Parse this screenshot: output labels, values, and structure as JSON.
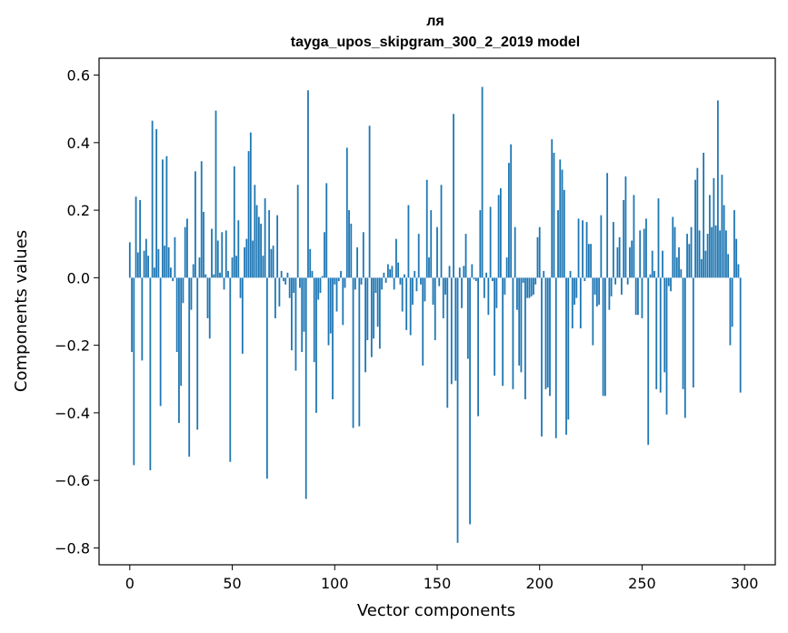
{
  "chart_data": {
    "type": "bar",
    "title": "ля",
    "subtitle": "tayga_upos_skipgram_300_2_2019 model",
    "xlabel": "Vector components",
    "ylabel": "Components values",
    "xlim": [
      -15,
      315
    ],
    "ylim": [
      -0.85,
      0.65
    ],
    "xticks": [
      0,
      50,
      100,
      150,
      200,
      250,
      300
    ],
    "xtick_labels": [
      "0",
      "50",
      "100",
      "150",
      "200",
      "250",
      "300"
    ],
    "yticks": [
      -0.8,
      -0.6,
      -0.4,
      -0.2,
      0.0,
      0.2,
      0.4,
      0.6
    ],
    "ytick_labels": [
      "−0.8",
      "−0.6",
      "−0.4",
      "−0.2",
      "0.0",
      "0.2",
      "0.4",
      "0.6"
    ],
    "grid": false,
    "bar_color": "#1f77b4",
    "values": [
      0.105,
      -0.22,
      -0.555,
      0.24,
      0.075,
      0.23,
      -0.245,
      0.08,
      0.115,
      0.065,
      -0.57,
      0.465,
      0.03,
      0.44,
      0.085,
      -0.38,
      0.35,
      0.095,
      0.36,
      0.09,
      0.03,
      -0.01,
      0.12,
      -0.22,
      -0.43,
      -0.32,
      -0.075,
      0.15,
      0.175,
      -0.53,
      -0.095,
      0.04,
      0.315,
      -0.45,
      0.06,
      0.345,
      0.195,
      0.01,
      -0.12,
      -0.18,
      0.145,
      0.01,
      0.495,
      0.11,
      0.015,
      0.135,
      -0.035,
      0.14,
      0.02,
      -0.545,
      0.06,
      0.33,
      0.065,
      0.17,
      -0.06,
      -0.225,
      0.09,
      0.115,
      0.375,
      0.43,
      0.11,
      0.275,
      0.215,
      0.18,
      0.16,
      0.065,
      0.235,
      -0.595,
      0.2,
      0.085,
      0.095,
      -0.12,
      0.185,
      -0.085,
      0.02,
      -0.01,
      -0.02,
      0.015,
      -0.06,
      -0.215,
      -0.045,
      -0.275,
      0.275,
      -0.03,
      -0.22,
      -0.16,
      -0.655,
      0.555,
      0.085,
      0.02,
      -0.25,
      -0.4,
      -0.065,
      -0.045,
      0.005,
      0.135,
      0.28,
      -0.2,
      -0.165,
      -0.36,
      -0.02,
      -0.1,
      -0.01,
      0.02,
      -0.14,
      -0.03,
      0.385,
      0.2,
      0.16,
      -0.445,
      -0.035,
      0.09,
      -0.44,
      -0.02,
      0.135,
      -0.28,
      -0.185,
      0.45,
      -0.235,
      -0.18,
      -0.045,
      -0.145,
      -0.21,
      -0.035,
      0.015,
      -0.015,
      0.04,
      0.025,
      0.035,
      -0.035,
      0.115,
      0.045,
      -0.02,
      -0.1,
      0.01,
      -0.155,
      0.215,
      -0.17,
      -0.08,
      0.02,
      -0.04,
      0.13,
      -0.02,
      -0.26,
      -0.07,
      0.29,
      0.06,
      0.2,
      -0.08,
      -0.185,
      0.15,
      -0.025,
      0.275,
      -0.12,
      -0.05,
      -0.385,
      0.035,
      -0.315,
      0.485,
      -0.305,
      -0.785,
      0.03,
      -0.09,
      0.035,
      0.13,
      -0.24,
      -0.73,
      0.04,
      -0.005,
      -0.01,
      -0.41,
      0.2,
      0.565,
      -0.06,
      0.015,
      -0.11,
      0.21,
      -0.01,
      -0.29,
      -0.09,
      0.245,
      0.265,
      -0.32,
      -0.05,
      0.06,
      0.34,
      0.395,
      -0.33,
      0.15,
      -0.095,
      -0.26,
      -0.28,
      -0.015,
      -0.36,
      -0.06,
      -0.06,
      -0.055,
      -0.05,
      -0.02,
      0.12,
      0.15,
      -0.47,
      0.02,
      -0.33,
      -0.325,
      -0.35,
      0.41,
      0.37,
      -0.475,
      0.2,
      0.35,
      0.32,
      0.26,
      -0.465,
      -0.42,
      0.02,
      -0.15,
      -0.08,
      -0.06,
      0.175,
      -0.15,
      0.17,
      -0.01,
      0.165,
      0.1,
      0.1,
      -0.2,
      -0.05,
      -0.085,
      -0.08,
      0.185,
      -0.35,
      -0.35,
      0.31,
      -0.095,
      -0.055,
      0.165,
      -0.02,
      0.09,
      0.12,
      -0.05,
      0.23,
      0.3,
      -0.02,
      0.09,
      0.11,
      0.245,
      -0.11,
      -0.11,
      0.14,
      -0.12,
      0.145,
      0.175,
      -0.495,
      0.01,
      0.08,
      0.02,
      -0.33,
      0.235,
      -0.34,
      0.08,
      -0.28,
      -0.405,
      -0.025,
      -0.04,
      0.18,
      0.15,
      0.06,
      0.09,
      0.025,
      -0.33,
      -0.415,
      0.13,
      0.1,
      0.15,
      -0.325,
      0.29,
      0.325,
      0.14,
      0.055,
      0.37,
      0.08,
      0.13,
      0.245,
      0.15,
      0.295,
      0.155,
      0.525,
      0.14,
      0.305,
      0.215,
      0.14,
      0.07,
      -0.2,
      -0.145,
      0.2,
      0.115,
      0.04,
      -0.34
    ]
  }
}
